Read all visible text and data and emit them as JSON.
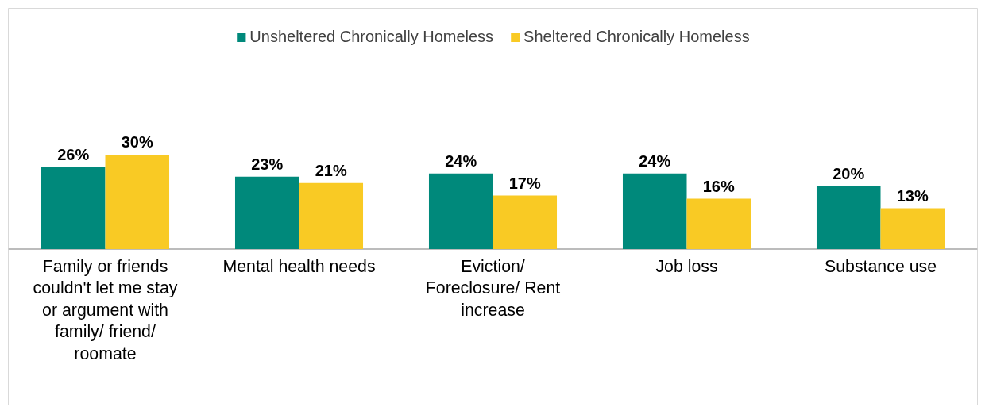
{
  "chart_data": {
    "type": "bar",
    "categories": [
      "Family or friends couldn't let me stay or argument with family/ friend/ roomate",
      "Mental health needs",
      "Eviction/ Foreclosure/ Rent increase",
      "Job loss",
      "Substance use"
    ],
    "series": [
      {
        "name": "Unsheltered Chronically Homeless",
        "color": "#00897b",
        "values": [
          26,
          23,
          24,
          24,
          20
        ],
        "value_labels": [
          "26%",
          "23%",
          "24%",
          "24%",
          "20%"
        ]
      },
      {
        "name": "Sheltered Chronically Homeless",
        "color": "#f9ca24",
        "values": [
          30,
          21,
          17,
          16,
          13
        ],
        "value_labels": [
          "30%",
          "21%",
          "17%",
          "16%",
          "13%"
        ]
      }
    ],
    "legend": "top"
  }
}
